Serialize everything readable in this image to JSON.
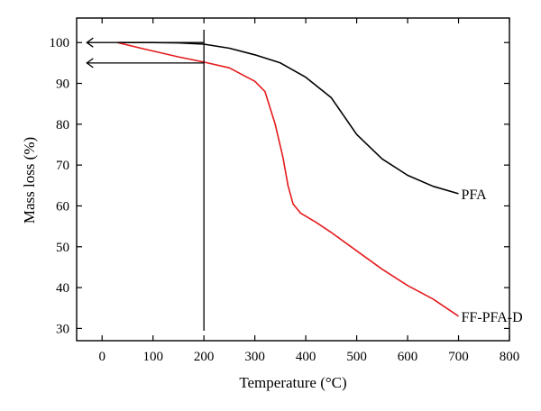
{
  "chart_data": {
    "type": "line",
    "xlabel": "Temperature (°C)",
    "ylabel": "Mass loss (%)",
    "xlim": [
      -50,
      800
    ],
    "ylim": [
      27,
      106
    ],
    "xticks": [
      0,
      100,
      200,
      300,
      400,
      500,
      600,
      700,
      800
    ],
    "yticks": [
      30,
      40,
      50,
      60,
      70,
      80,
      90,
      100
    ],
    "series": [
      {
        "name": "PFA",
        "color": "#000000",
        "points": [
          [
            30,
            100
          ],
          [
            100,
            100
          ],
          [
            150,
            99.9
          ],
          [
            200,
            99.6
          ],
          [
            250,
            98.6
          ],
          [
            300,
            97.0
          ],
          [
            350,
            95.0
          ],
          [
            400,
            91.5
          ],
          [
            450,
            86.5
          ],
          [
            500,
            77.5
          ],
          [
            550,
            71.5
          ],
          [
            600,
            67.5
          ],
          [
            650,
            64.8
          ],
          [
            700,
            63.0
          ]
        ]
      },
      {
        "name": "FF-PFA-D",
        "color": "#e41a1c",
        "points": [
          [
            30,
            100
          ],
          [
            80,
            98.5
          ],
          [
            150,
            96.5
          ],
          [
            200,
            95.2
          ],
          [
            250,
            93.8
          ],
          [
            300,
            90.5
          ],
          [
            320,
            88.0
          ],
          [
            340,
            80.0
          ],
          [
            355,
            72.0
          ],
          [
            365,
            65.0
          ],
          [
            375,
            60.5
          ],
          [
            390,
            58.2
          ],
          [
            420,
            56.0
          ],
          [
            450,
            53.5
          ],
          [
            500,
            49.0
          ],
          [
            550,
            44.5
          ],
          [
            600,
            40.5
          ],
          [
            650,
            37.2
          ],
          [
            700,
            33.0
          ]
        ]
      }
    ],
    "annotations": {
      "vertical_line_x": 200,
      "arrows": [
        {
          "y": 100,
          "from_x": 200,
          "to_x": -30
        },
        {
          "y": 95,
          "from_x": 200,
          "to_x": -30
        }
      ]
    }
  }
}
